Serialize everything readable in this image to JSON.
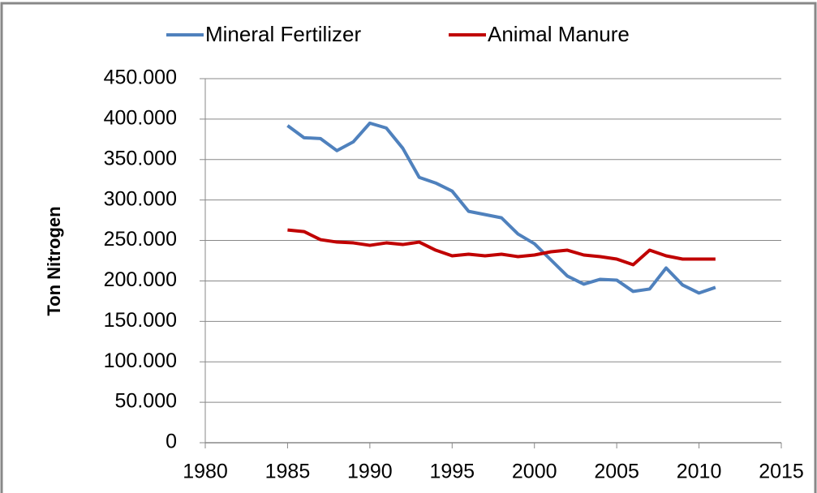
{
  "chart_data": {
    "type": "line",
    "y_label": "Ton Nitrogen",
    "x": [
      1985,
      1986,
      1987,
      1988,
      1989,
      1990,
      1991,
      1992,
      1993,
      1994,
      1995,
      1996,
      1997,
      1998,
      1999,
      2000,
      2001,
      2002,
      2003,
      2004,
      2005,
      2006,
      2007,
      2008,
      2009,
      2010,
      2011
    ],
    "series": [
      {
        "name": "Mineral Fertilizer",
        "color": "#4f81bd",
        "values": [
          392000,
          377000,
          376000,
          361000,
          372000,
          395000,
          389000,
          364000,
          328000,
          321000,
          311000,
          286000,
          282000,
          278000,
          258000,
          246000,
          226000,
          206000,
          196000,
          202000,
          201000,
          187000,
          190000,
          216000,
          195000,
          185000,
          192000
        ]
      },
      {
        "name": "Animal Manure",
        "color": "#c00000",
        "values": [
          263000,
          261000,
          251000,
          248000,
          247000,
          244000,
          247000,
          245000,
          248000,
          238000,
          231000,
          233000,
          231000,
          233000,
          230000,
          232000,
          236000,
          238000,
          232000,
          230000,
          227000,
          220000,
          238000,
          231000,
          227000,
          227000,
          227000
        ]
      }
    ],
    "xlim": [
      1980,
      2015
    ],
    "xticks": [
      1980,
      1985,
      1990,
      1995,
      2000,
      2005,
      2010,
      2015
    ],
    "ylim": [
      0,
      450000
    ],
    "yticks": [
      0,
      {
        "value": 50000,
        "label": "50.000"
      },
      {
        "value": 100000,
        "label": "100.000"
      },
      {
        "value": 150000,
        "label": "150.000"
      },
      {
        "value": 200000,
        "label": "200.000"
      },
      {
        "value": 250000,
        "label": "250.000"
      },
      {
        "value": 300000,
        "label": "300.000"
      },
      {
        "value": 350000,
        "label": "350.000"
      },
      {
        "value": 400000,
        "label": "400.000"
      },
      {
        "value": 450000,
        "label": "450.000"
      }
    ],
    "grid": true,
    "legend": "top"
  }
}
